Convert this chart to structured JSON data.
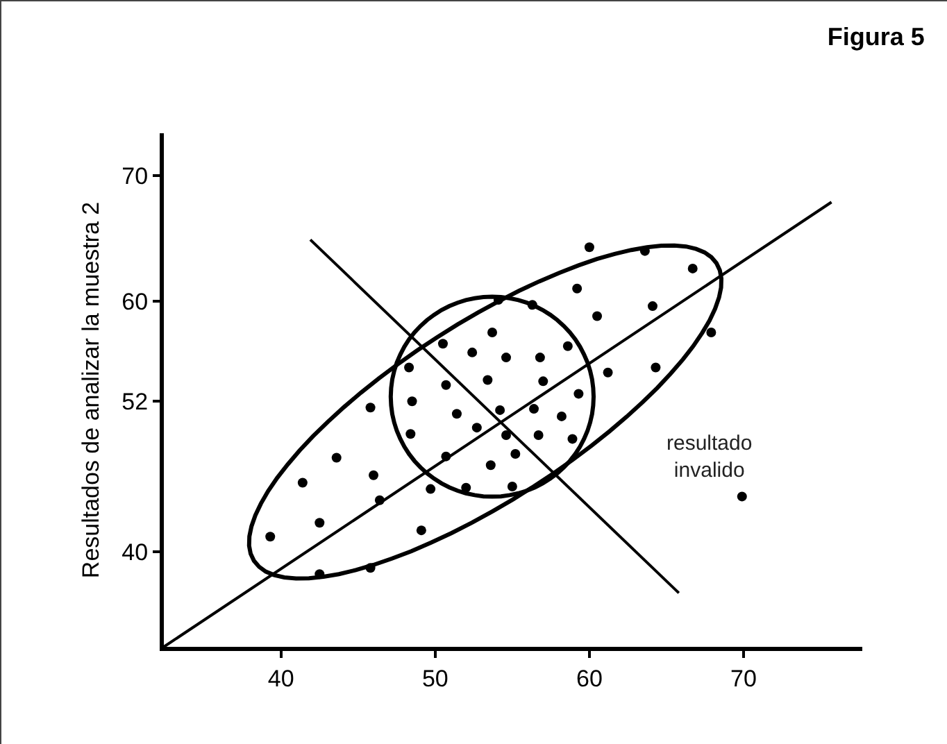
{
  "chart_data": {
    "type": "scatter",
    "title": "Figura 5",
    "ylabel": "Resultados de analizar la muestra 2",
    "xlim": [
      32.4,
      77.7
    ],
    "ylim": [
      32.4,
      73.4
    ],
    "xticks": [
      40,
      50,
      60,
      70
    ],
    "yticks": [
      40,
      52,
      60,
      70
    ],
    "grid": false,
    "marker": "circle",
    "annotations": [
      {
        "text": "resultado\ninvalido",
        "x": 69.9,
        "y": 44.4
      }
    ],
    "series": [
      {
        "type": "scatter",
        "color": "#000000",
        "x": [
          54.1,
          53.7,
          50.5,
          52.4,
          54.6,
          48.3,
          53.4,
          50.7,
          48.5,
          45.8,
          51.4,
          54.2,
          52.7,
          54.6,
          48.4,
          50.7,
          53.6,
          43.6,
          46.0,
          41.4,
          49.7,
          52.0,
          46.4,
          42.5,
          49.1,
          39.3,
          42.5,
          45.8,
          60.0,
          63.6,
          66.7,
          59.2,
          56.3,
          64.1,
          60.5,
          67.9,
          56.8,
          58.6,
          61.2,
          64.3,
          57.0,
          59.3,
          56.4,
          58.2,
          56.7,
          58.9,
          55.2,
          55.0,
          69.9
        ],
        "values": [
          60.1,
          57.5,
          56.6,
          55.9,
          55.5,
          54.7,
          53.7,
          53.3,
          52.0,
          51.5,
          51.0,
          51.3,
          49.9,
          49.3,
          49.4,
          47.6,
          46.9,
          47.5,
          46.1,
          45.5,
          45.0,
          45.1,
          44.1,
          42.3,
          41.7,
          41.2,
          38.2,
          38.7,
          64.3,
          64.0,
          62.6,
          61.0,
          59.7,
          59.6,
          58.8,
          57.5,
          55.5,
          56.4,
          54.3,
          54.7,
          53.6,
          52.6,
          51.4,
          50.8,
          49.3,
          49.0,
          47.8,
          45.2,
          44.4
        ]
      },
      {
        "type": "line",
        "color": "#000000",
        "marker": "none",
        "x": [
          32.4,
          75.7
        ],
        "values": [
          32.4,
          67.9
        ]
      },
      {
        "type": "line",
        "color": "#000000",
        "marker": "none",
        "x": [
          41.9,
          65.8
        ],
        "values": [
          64.9,
          36.7
        ]
      }
    ]
  }
}
